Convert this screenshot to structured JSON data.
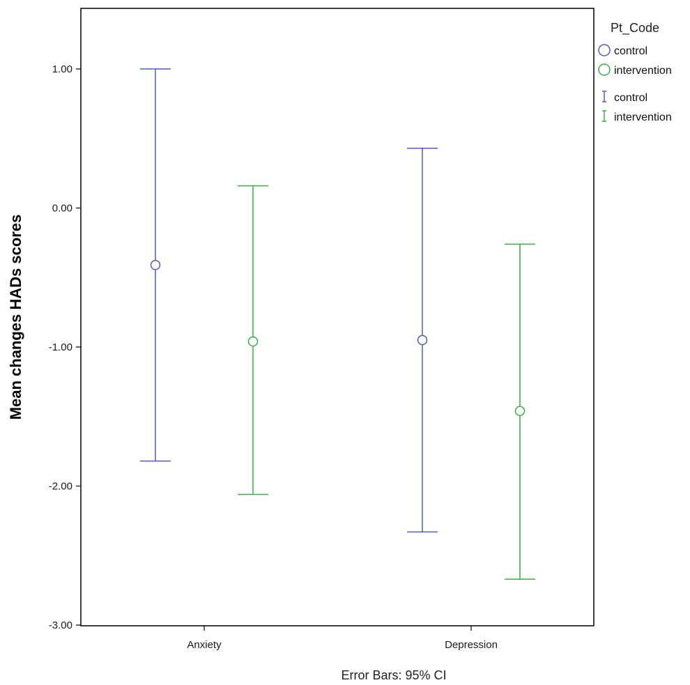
{
  "chart_data": {
    "type": "scatter",
    "subtype": "error-bar",
    "categories": [
      "Anxiety",
      "Depression"
    ],
    "ylabel": "Mean changes HADs scores",
    "xlabel": "",
    "footer": "Error Bars: 95% CI",
    "ylim": [
      -3.0,
      1.0
    ],
    "yticks": [
      1.0,
      0.0,
      -1.0,
      -2.0,
      -3.0
    ],
    "ytick_labels": [
      "1.00",
      "0.00",
      "-1.00",
      "-2.00",
      "-3.00"
    ],
    "grid": false,
    "legend": {
      "title": "Pt_Code",
      "placement": "right",
      "entries": [
        {
          "marker": "circle",
          "label": "control",
          "color": "#4f5bbd"
        },
        {
          "marker": "circle",
          "label": "intervention",
          "color": "#3aad4a"
        },
        {
          "marker": "errorbar",
          "label": "control",
          "color": "#4f5bbd"
        },
        {
          "marker": "errorbar",
          "label": "intervention",
          "color": "#3aad4a"
        }
      ]
    },
    "series": [
      {
        "name": "control",
        "color": "#4f5bbd",
        "means": [
          -0.41,
          -0.95
        ],
        "lower": [
          -1.82,
          -2.33
        ],
        "upper": [
          1.0,
          0.43
        ]
      },
      {
        "name": "intervention",
        "color": "#3aad4a",
        "means": [
          -0.96,
          -1.46
        ],
        "lower": [
          -2.06,
          -2.67
        ],
        "upper": [
          0.16,
          -0.26
        ]
      }
    ]
  }
}
